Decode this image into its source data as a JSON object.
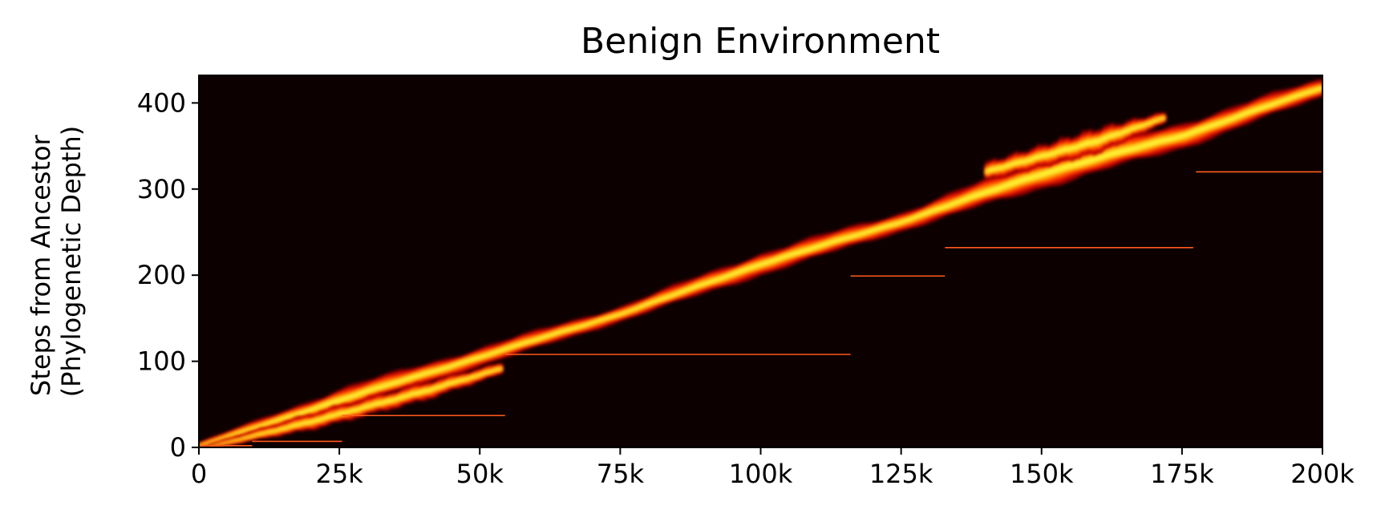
{
  "chart_data": {
    "type": "heatmap",
    "title": "Benign Environment",
    "xlabel": "",
    "ylabel": [
      "Steps from Ancestor",
      "(Phylogenetic Depth)"
    ],
    "xlim": [
      0,
      200000
    ],
    "ylim": [
      0,
      432
    ],
    "x_ticks": [
      {
        "value": 0,
        "label": "0"
      },
      {
        "value": 25000,
        "label": "25k"
      },
      {
        "value": 50000,
        "label": "50k"
      },
      {
        "value": 75000,
        "label": "75k"
      },
      {
        "value": 100000,
        "label": "100k"
      },
      {
        "value": 125000,
        "label": "125k"
      },
      {
        "value": 150000,
        "label": "150k"
      },
      {
        "value": 175000,
        "label": "175k"
      },
      {
        "value": 200000,
        "label": "200k"
      }
    ],
    "y_ticks": [
      {
        "value": 0,
        "label": "0"
      },
      {
        "value": 100,
        "label": "100"
      },
      {
        "value": 200,
        "label": "200"
      },
      {
        "value": 300,
        "label": "300"
      },
      {
        "value": 400,
        "label": "400"
      }
    ],
    "background_color": "#0d0000",
    "colormap": [
      "#0d0000",
      "#b30000",
      "#ff3300",
      "#ff9900",
      "#ffee33"
    ],
    "bands": [
      {
        "name": "main-lineage",
        "points": [
          [
            0,
            2
          ],
          [
            25000,
            55
          ],
          [
            50000,
            105
          ],
          [
            75000,
            155
          ],
          [
            100000,
            213
          ],
          [
            125000,
            262
          ],
          [
            150000,
            318
          ],
          [
            175000,
            362
          ],
          [
            200000,
            418
          ]
        ],
        "spread": [
          [
            0,
            3
          ],
          [
            25000,
            12
          ],
          [
            50000,
            10
          ],
          [
            75000,
            8
          ],
          [
            100000,
            12
          ],
          [
            125000,
            10
          ],
          [
            150000,
            16
          ],
          [
            175000,
            14
          ],
          [
            200000,
            10
          ]
        ]
      },
      {
        "name": "side-branch-early",
        "points": [
          [
            2000,
            1
          ],
          [
            20000,
            30
          ],
          [
            40000,
            65
          ],
          [
            54000,
            92
          ]
        ],
        "spread": [
          [
            2000,
            2
          ],
          [
            20000,
            9
          ],
          [
            40000,
            10
          ],
          [
            54000,
            6
          ]
        ]
      },
      {
        "name": "side-branch-late",
        "points": [
          [
            140000,
            320
          ],
          [
            160000,
            356
          ],
          [
            172000,
            383
          ]
        ],
        "spread": [
          [
            140000,
            10
          ],
          [
            160000,
            14
          ],
          [
            172000,
            6
          ]
        ]
      }
    ],
    "lines": [
      {
        "x0": 500,
        "x1": 9500,
        "y": 2
      },
      {
        "x0": 9500,
        "x1": 25500,
        "y": 7
      },
      {
        "x0": 25500,
        "x1": 54500,
        "y": 37
      },
      {
        "x0": 54500,
        "x1": 116000,
        "y": 108
      },
      {
        "x0": 116000,
        "x1": 132800,
        "y": 199
      },
      {
        "x0": 132800,
        "x1": 177000,
        "y": 232
      },
      {
        "x0": 177500,
        "x1": 200000,
        "y": 320
      }
    ],
    "line_color": "#ff5a1e"
  }
}
